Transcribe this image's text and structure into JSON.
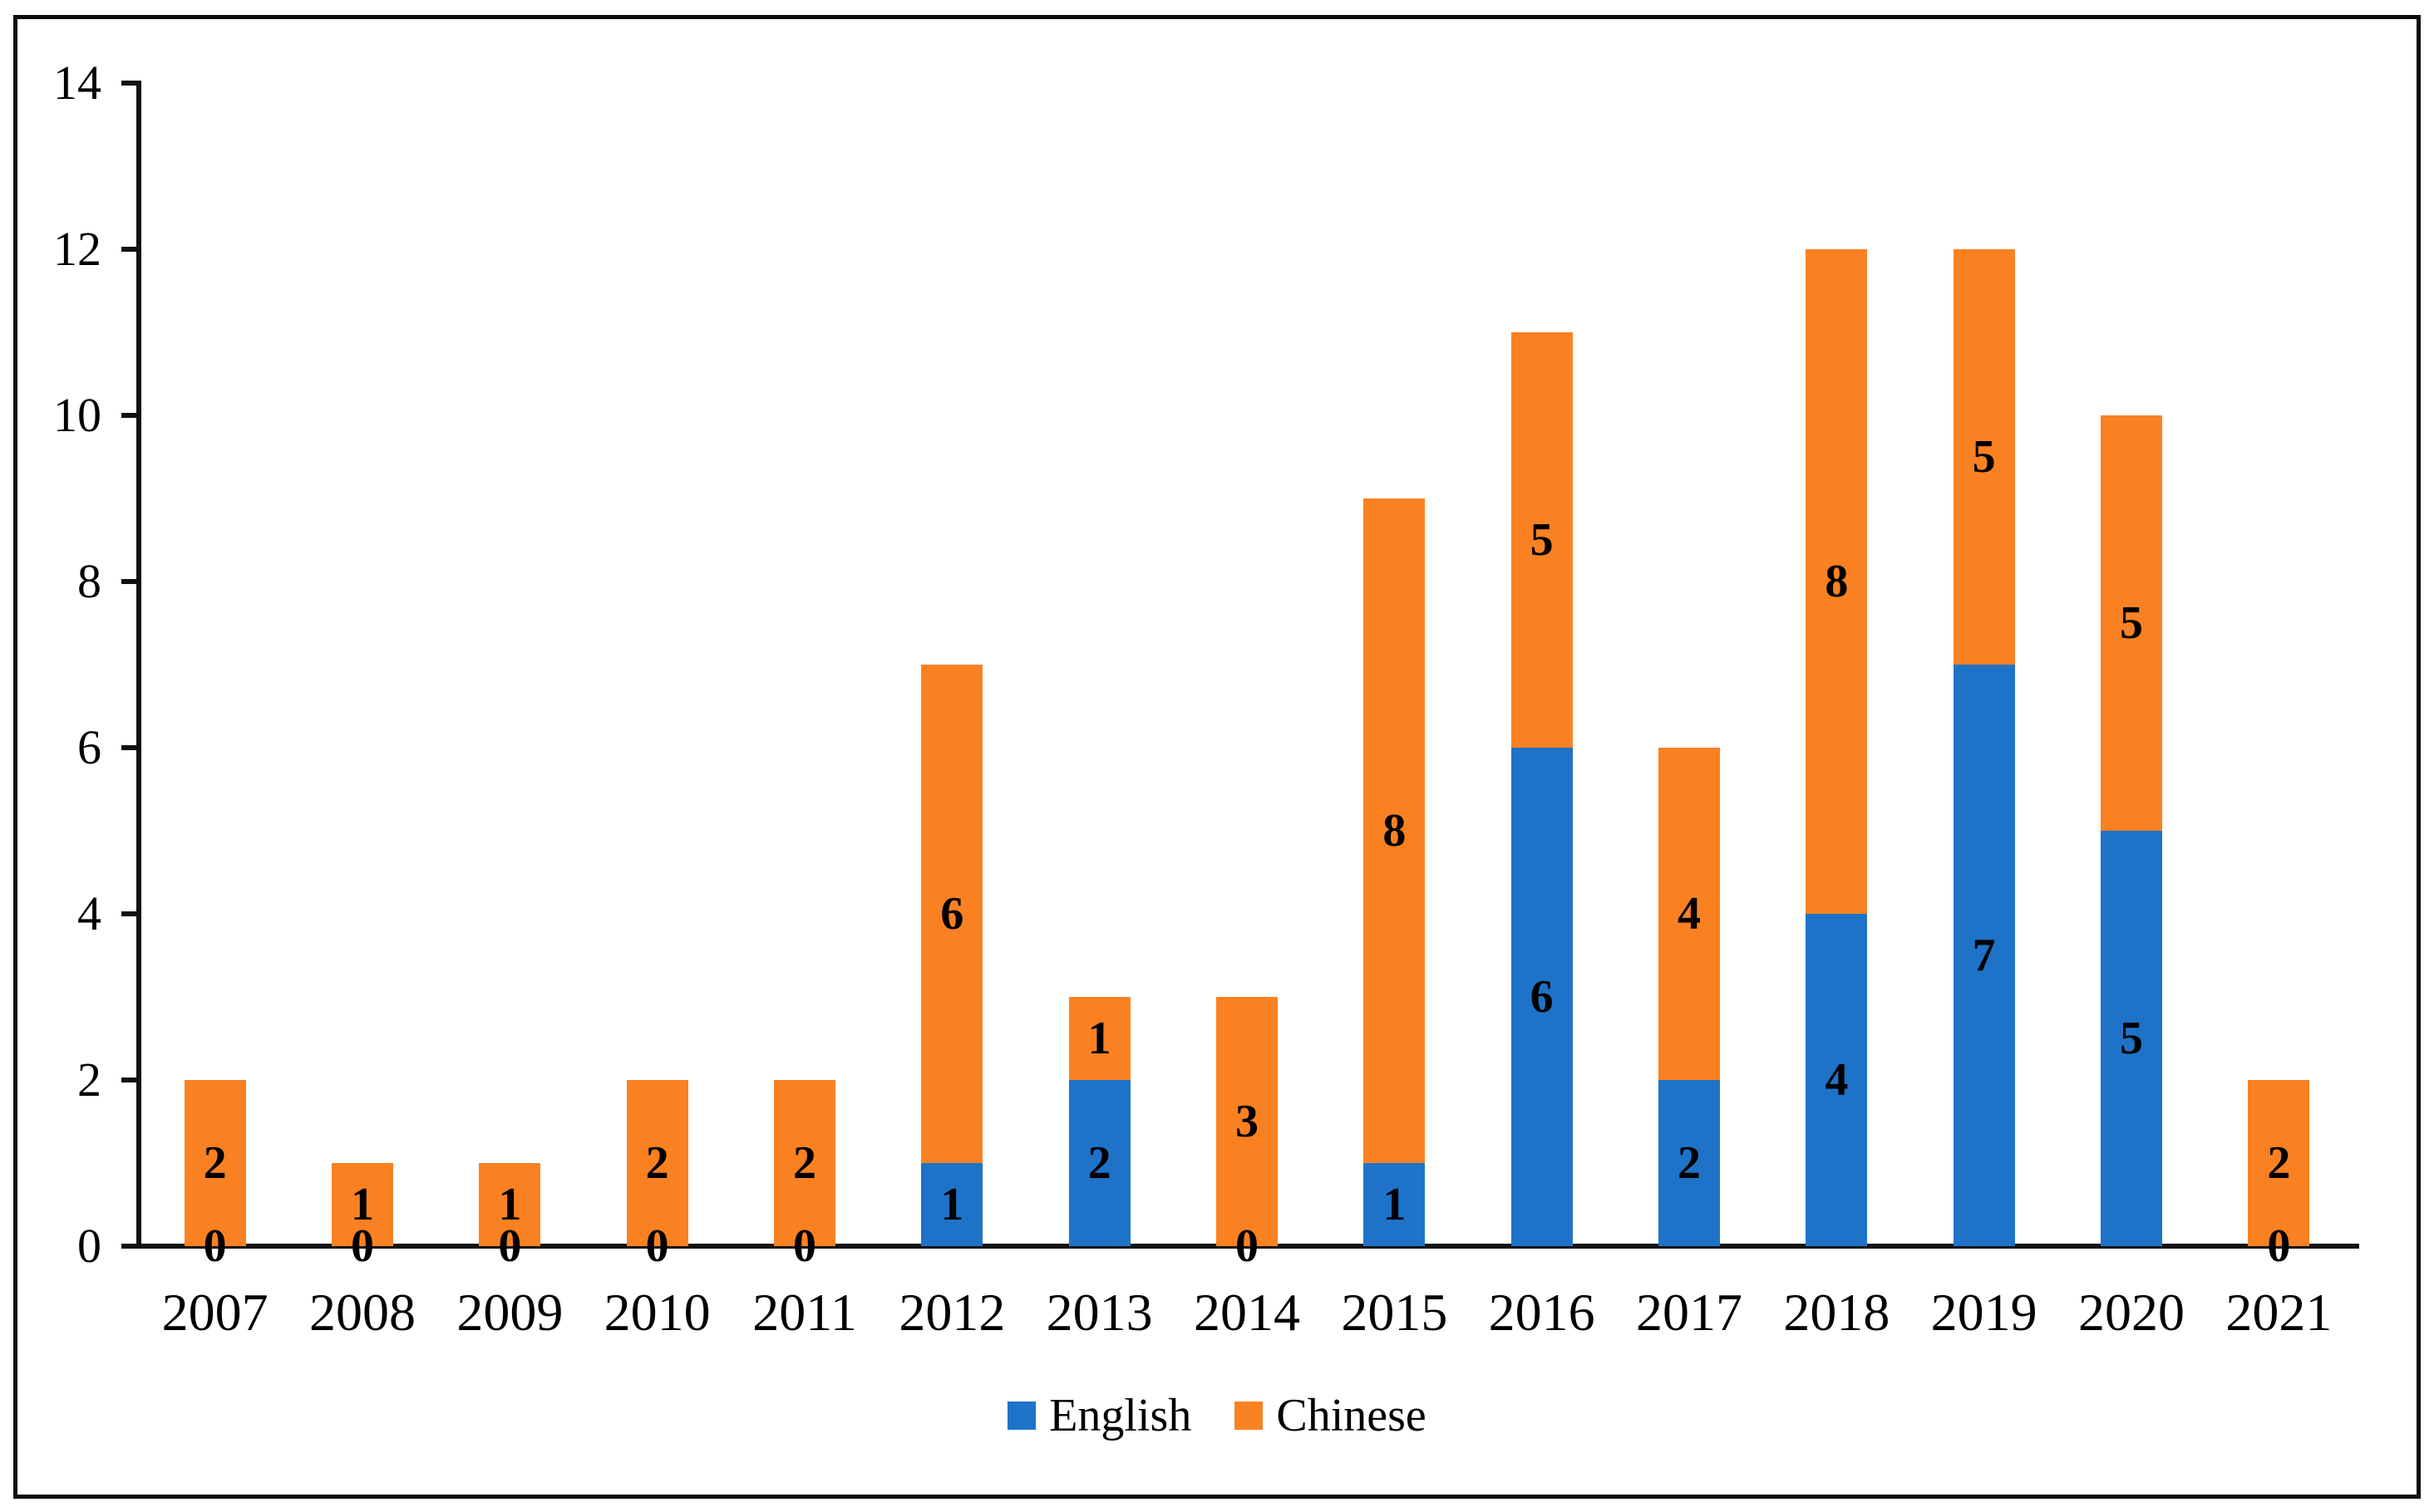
{
  "figure": {
    "background": "#ffffff",
    "frame_border_color": "#0c0c0c",
    "axis_color": "#111111",
    "label_color": "#000000"
  },
  "chart_data": {
    "type": "bar",
    "stacked": true,
    "title": "",
    "xlabel": "",
    "ylabel": "",
    "categories": [
      "2007",
      "2008",
      "2009",
      "2010",
      "2011",
      "2012",
      "2013",
      "2014",
      "2015",
      "2016",
      "2017",
      "2018",
      "2019",
      "2020",
      "2021"
    ],
    "series": [
      {
        "name": "English",
        "color": "#1E73C8",
        "values": [
          0,
          0,
          0,
          0,
          0,
          1,
          2,
          0,
          1,
          6,
          2,
          4,
          7,
          5,
          0
        ]
      },
      {
        "name": "Chinese",
        "color": "#FA8122",
        "values": [
          2,
          1,
          1,
          2,
          2,
          6,
          1,
          3,
          8,
          5,
          4,
          8,
          5,
          5,
          2
        ]
      }
    ],
    "ylim": [
      0,
      14
    ],
    "ytick_step": 2,
    "yticks": [
      "0",
      "2",
      "4",
      "6",
      "8",
      "10",
      "12",
      "14"
    ],
    "grid": false,
    "legend_position": "bottom",
    "data_labels": true
  }
}
